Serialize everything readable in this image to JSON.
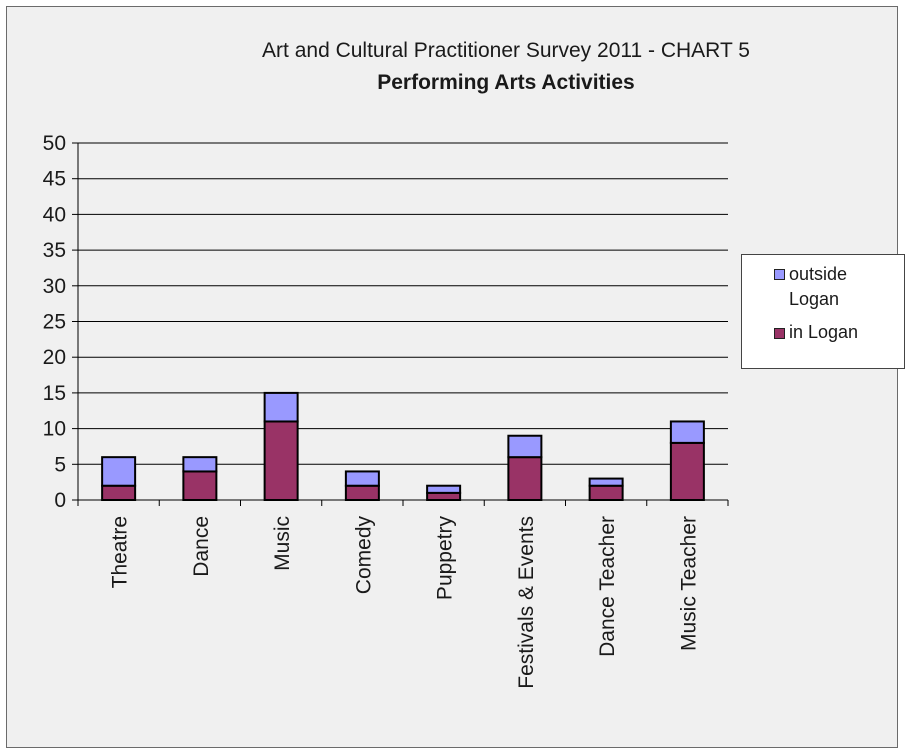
{
  "chart_data": {
    "type": "bar",
    "stacked": true,
    "title": "Art and Cultural Practitioner Survey 2011 - CHART 5",
    "subtitle": "Performing Arts Activities",
    "xlabel": "",
    "ylabel": "",
    "ylim": [
      0,
      50
    ],
    "yticks": [
      "0",
      "5",
      "10",
      "15",
      "20",
      "25",
      "30",
      "35",
      "40",
      "45",
      "50"
    ],
    "grid": true,
    "legend_position": "right",
    "categories": [
      "Theatre",
      "Dance",
      "Music",
      "Comedy",
      "Puppetry",
      "Festivals & Events",
      "Dance Teacher",
      "Music Teacher"
    ],
    "series": [
      {
        "name": "in Logan",
        "color": "#993366",
        "values": [
          2,
          4,
          11,
          2,
          1,
          6,
          2,
          8
        ]
      },
      {
        "name": "outside Logan",
        "color": "#9999ff",
        "values": [
          4,
          2,
          4,
          2,
          1,
          3,
          1,
          3
        ]
      }
    ],
    "legend": {
      "entries": [
        {
          "line1": "outside",
          "line2": "Logan",
          "color": "#9999ff"
        },
        {
          "line1": "in Logan",
          "color": "#993366"
        }
      ]
    }
  }
}
